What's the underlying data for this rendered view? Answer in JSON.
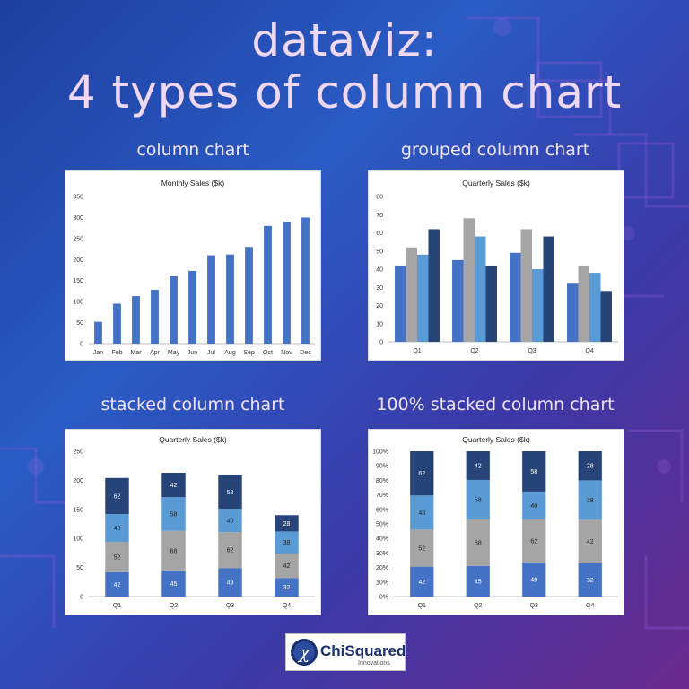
{
  "header": {
    "title_line1": "dataviz:",
    "title_line2": "4 types of column chart"
  },
  "panels": {
    "p1_title": "column chart",
    "p2_title": "grouped column chart",
    "p3_title": "stacked column chart",
    "p4_title": "100% stacked column chart"
  },
  "logo": {
    "name": "ChiSquared",
    "tagline": "Innovations",
    "icon": "chi-symbol-icon"
  },
  "colors": {
    "blue": "#4472c4",
    "gray": "#a5a5a5",
    "lightblue": "#5b9bd5",
    "navy": "#264478"
  },
  "chart_data": [
    {
      "type": "bar",
      "title": "Monthly Sales ($k)",
      "categories": [
        "Jan",
        "Feb",
        "Mar",
        "Apr",
        "May",
        "Jun",
        "Jul",
        "Aug",
        "Sep",
        "Oct",
        "Nov",
        "Dec"
      ],
      "values": [
        52,
        95,
        113,
        128,
        160,
        173,
        210,
        212,
        230,
        280,
        290,
        300
      ],
      "ylim": [
        0,
        350
      ],
      "yticks": [
        "0",
        "50",
        "100",
        "150",
        "200",
        "250",
        "300",
        "350"
      ]
    },
    {
      "type": "bar",
      "title": "Quarterly Sales ($k)",
      "categories": [
        "Q1",
        "Q2",
        "Q3",
        "Q4"
      ],
      "series": [
        {
          "values": [
            42,
            45,
            49,
            32
          ]
        },
        {
          "values": [
            52,
            68,
            62,
            42
          ]
        },
        {
          "values": [
            48,
            58,
            40,
            38
          ]
        },
        {
          "values": [
            62,
            42,
            58,
            28
          ]
        }
      ],
      "ylim": [
        0,
        80
      ],
      "yticks": [
        "0",
        "10",
        "20",
        "30",
        "40",
        "50",
        "60",
        "70",
        "80"
      ]
    },
    {
      "type": "bar",
      "stacked": true,
      "title": "Quarterly Sales ($k)",
      "categories": [
        "Q1",
        "Q2",
        "Q3",
        "Q4"
      ],
      "series": [
        {
          "values": [
            42,
            45,
            49,
            32
          ]
        },
        {
          "values": [
            52,
            68,
            62,
            42
          ]
        },
        {
          "values": [
            48,
            58,
            40,
            38
          ]
        },
        {
          "values": [
            62,
            42,
            58,
            28
          ]
        }
      ],
      "ylim": [
        0,
        250
      ],
      "yticks": [
        "0",
        "50",
        "100",
        "150",
        "200",
        "250"
      ]
    },
    {
      "type": "bar",
      "stacked_percent": true,
      "title": "Quarterly Sales ($k)",
      "categories": [
        "Q1",
        "Q2",
        "Q3",
        "Q4"
      ],
      "series": [
        {
          "values": [
            42,
            45,
            49,
            32
          ]
        },
        {
          "values": [
            52,
            68,
            62,
            42
          ]
        },
        {
          "values": [
            48,
            58,
            40,
            38
          ]
        },
        {
          "values": [
            62,
            42,
            58,
            28
          ]
        }
      ],
      "ylim": [
        0,
        100
      ],
      "yticks": [
        "0%",
        "10%",
        "20%",
        "30%",
        "40%",
        "50%",
        "60%",
        "70%",
        "80%",
        "90%",
        "100%"
      ]
    }
  ]
}
